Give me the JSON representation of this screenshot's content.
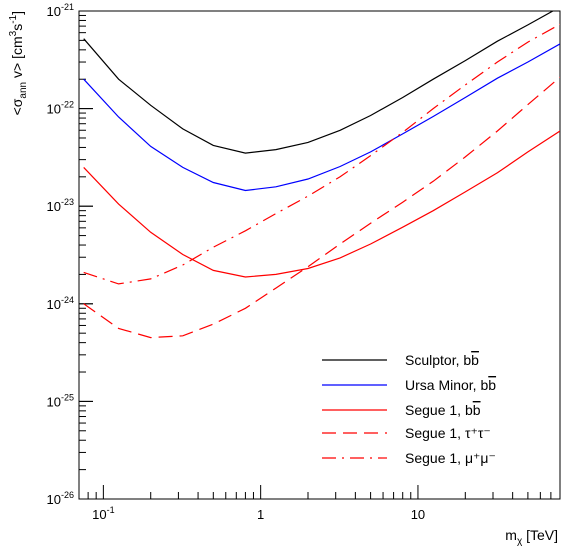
{
  "chart_data": {
    "type": "line",
    "x_scale": "log",
    "y_scale": "log",
    "xlim": [
      0.07,
      80
    ],
    "ylim": [
      1e-26,
      1e-21
    ],
    "grid": false,
    "legend_position": "bottom-right",
    "xlabel": {
      "main": "m",
      "sub": "χ",
      "unit": " [TeV]"
    },
    "ylabel": {
      "pre": "<σ",
      "sub": "ann",
      "post": " v> [cm",
      "sup1": "3",
      "mid": "s",
      "sup2": "-1",
      "end": "]"
    },
    "x_ticks": [
      {
        "value": 0.1,
        "base": "10",
        "exp": "-1"
      },
      {
        "value": 1,
        "base": "1",
        "exp": ""
      },
      {
        "value": 10,
        "base": "10",
        "exp": ""
      }
    ],
    "y_ticks": [
      {
        "value": 1e-21,
        "base": "10",
        "exp": "-21"
      },
      {
        "value": 1e-22,
        "base": "10",
        "exp": "-22"
      },
      {
        "value": 1e-23,
        "base": "10",
        "exp": "-23"
      },
      {
        "value": 1e-24,
        "base": "10",
        "exp": "-24"
      },
      {
        "value": 1e-25,
        "base": "10",
        "exp": "-25"
      },
      {
        "value": 1e-26,
        "base": "10",
        "exp": "-26"
      }
    ],
    "series": [
      {
        "id": "sculptor-bb",
        "name": {
          "text": "Sculptor, b",
          "bar": "b",
          "sup": ""
        },
        "color": "#000000",
        "dash": "solid",
        "x": [
          0.075,
          0.125,
          0.2,
          0.32,
          0.5,
          0.8,
          1.25,
          2,
          3.2,
          5,
          8,
          12.5,
          20,
          32,
          50,
          80
        ],
        "y": [
          5.2e-22,
          2e-22,
          1.08e-22,
          6.2e-23,
          4.2e-23,
          3.5e-23,
          3.8e-23,
          4.5e-23,
          6e-23,
          8.5e-23,
          1.3e-22,
          2e-22,
          3.1e-22,
          4.9e-22,
          7.2e-22,
          1.1e-21
        ]
      },
      {
        "id": "ursa-minor-bb",
        "name": {
          "text": "Ursa Minor, b",
          "bar": "b",
          "sup": ""
        },
        "color": "#0000ff",
        "dash": "solid",
        "x": [
          0.075,
          0.125,
          0.2,
          0.32,
          0.5,
          0.8,
          1.25,
          2,
          3.2,
          5,
          8,
          12.5,
          20,
          32,
          50,
          80
        ],
        "y": [
          2e-22,
          8.2e-23,
          4.1e-23,
          2.5e-23,
          1.75e-23,
          1.45e-23,
          1.58e-23,
          1.9e-23,
          2.55e-23,
          3.6e-23,
          5.5e-23,
          8.3e-23,
          1.3e-22,
          2.05e-22,
          3e-22,
          4.6e-22
        ]
      },
      {
        "id": "segue1-bb",
        "name": {
          "text": "Segue 1, b",
          "bar": "b",
          "sup": ""
        },
        "color": "#ff0000",
        "dash": "solid",
        "x": [
          0.075,
          0.125,
          0.2,
          0.32,
          0.5,
          0.8,
          1.25,
          2,
          3.2,
          5,
          8,
          12.5,
          20,
          32,
          50,
          80
        ],
        "y": [
          2.5e-23,
          1.05e-23,
          5.4e-24,
          3.2e-24,
          2.2e-24,
          1.88e-24,
          2e-24,
          2.3e-24,
          2.95e-24,
          4.1e-24,
          6.1e-24,
          9e-24,
          1.4e-23,
          2.2e-23,
          3.6e-23,
          5.9e-23
        ]
      },
      {
        "id": "segue1-tautau",
        "name": {
          "text": "Segue 1, ",
          "greek": "τ⁺τ⁻"
        },
        "color": "#ff0000",
        "dash": "dashed",
        "x": [
          0.075,
          0.125,
          0.2,
          0.32,
          0.5,
          0.8,
          1.25,
          2,
          3.2,
          5,
          8,
          12.5,
          20,
          32,
          50,
          80
        ],
        "y": [
          1e-24,
          5.6e-25,
          4.5e-25,
          4.7e-25,
          6.2e-25,
          9e-25,
          1.45e-24,
          2.4e-24,
          4.1e-24,
          6.7e-24,
          1.1e-23,
          1.8e-23,
          3.2e-23,
          5.9e-23,
          1.1e-22,
          2.1e-22
        ]
      },
      {
        "id": "segue1-mumu",
        "name": {
          "text": "Segue 1, ",
          "greek": "μ⁺μ⁻"
        },
        "color": "#ff0000",
        "dash": "dashdot",
        "x": [
          0.075,
          0.125,
          0.2,
          0.32,
          0.5,
          0.8,
          1.25,
          2,
          3.2,
          5,
          8,
          12.5,
          20,
          32,
          50,
          80
        ],
        "y": [
          2.1e-24,
          1.6e-24,
          1.8e-24,
          2.5e-24,
          3.8e-24,
          5.6e-24,
          8.4e-24,
          1.27e-23,
          2e-23,
          3.3e-23,
          5.7e-23,
          1e-22,
          1.75e-22,
          3e-22,
          4.8e-22,
          7.3e-22
        ]
      }
    ]
  }
}
